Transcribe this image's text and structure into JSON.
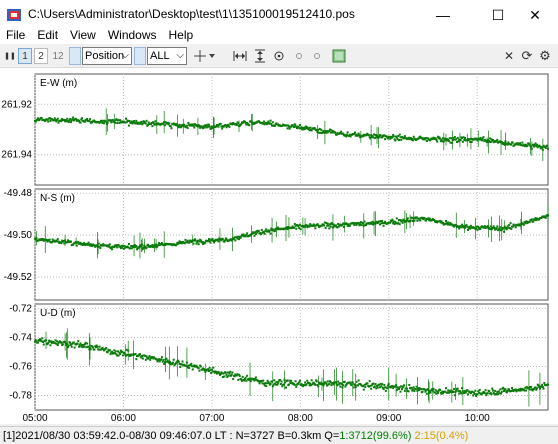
{
  "window": {
    "title": "C:\\Users\\Administrator\\Desktop\\test\\1\\135100019512410.pos",
    "min_glyph": "—",
    "max_glyph": "☐",
    "close_glyph": "✕"
  },
  "menu": [
    "File",
    "Edit",
    "View",
    "Windows",
    "Help"
  ],
  "toolbar": {
    "pause_glyph": "❚❚",
    "btn1": "1",
    "btn2": "2",
    "btn12": "12",
    "plot_type": "Position",
    "solution": "ALL",
    "close_glyph": "✕",
    "refresh_glyph": "⟳",
    "settings_glyph": "⚙"
  },
  "chart_data": [
    {
      "type": "scatter",
      "ylabel": "E-W (m)",
      "yticks": [
        "261.92",
        "261.94"
      ],
      "ytick_values": [
        261.92,
        261.94
      ],
      "ylim": [
        261.952,
        261.908
      ],
      "trend": [
        [
          0,
          261.926
        ],
        [
          1,
          261.927
        ],
        [
          1.5,
          261.928
        ],
        [
          2,
          261.929
        ],
        [
          2.5,
          261.927
        ],
        [
          3,
          261.929
        ],
        [
          3.5,
          261.932
        ],
        [
          4,
          261.933
        ],
        [
          4.5,
          261.934
        ],
        [
          5,
          261.934
        ],
        [
          5.5,
          261.936
        ],
        [
          5.8,
          261.937
        ]
      ],
      "noise": 0.0015,
      "color": "#0b7a0b"
    },
    {
      "type": "scatter",
      "ylabel": "N-S (m)",
      "yticks": [
        "-49.48",
        "-49.50",
        "-49.52"
      ],
      "ytick_values": [
        -49.48,
        -49.5,
        -49.52
      ],
      "ylim": [
        -49.531,
        -49.478
      ],
      "trend": [
        [
          0,
          -49.502
        ],
        [
          0.5,
          -49.504
        ],
        [
          1,
          -49.506
        ],
        [
          1.4,
          -49.505
        ],
        [
          1.8,
          -49.503
        ],
        [
          2.2,
          -49.502
        ],
        [
          2.6,
          -49.498
        ],
        [
          3,
          -49.496
        ],
        [
          3.5,
          -49.495
        ],
        [
          4,
          -49.494
        ],
        [
          4.4,
          -49.492
        ],
        [
          4.8,
          -49.496
        ],
        [
          5.3,
          -49.497
        ],
        [
          5.8,
          -49.491
        ]
      ],
      "noise": 0.0018,
      "color": "#0b7a0b"
    },
    {
      "type": "scatter",
      "ylabel": "U-D (m)",
      "yticks": [
        "-0.72",
        "-0.74",
        "-0.76",
        "-0.78"
      ],
      "ytick_values": [
        -0.72,
        -0.74,
        -0.76,
        -0.78
      ],
      "ylim": [
        -0.79,
        -0.717
      ],
      "trend": [
        [
          0,
          -0.742
        ],
        [
          0.5,
          -0.745
        ],
        [
          0.9,
          -0.75
        ],
        [
          1.3,
          -0.754
        ],
        [
          1.8,
          -0.76
        ],
        [
          2.2,
          -0.766
        ],
        [
          2.6,
          -0.771
        ],
        [
          3,
          -0.772
        ],
        [
          3.5,
          -0.772
        ],
        [
          4,
          -0.774
        ],
        [
          4.5,
          -0.777
        ],
        [
          5,
          -0.778
        ],
        [
          5.5,
          -0.776
        ],
        [
          5.8,
          -0.773
        ]
      ],
      "noise": 0.0035,
      "color": "#0b7a0b"
    }
  ],
  "xticks": [
    "05:00",
    "06:00",
    "07:00",
    "08:00",
    "09:00",
    "10:00"
  ],
  "xtick_values": [
    0,
    1,
    2,
    3,
    4,
    5
  ],
  "xlim": [
    0,
    5.8
  ],
  "status": {
    "prefix": "[1]2021/08/30 03:59:42.0-08/30 09:46:07.0 LT : N=3727 B=0.3km Q=",
    "q1": "1:3712(99.6%)",
    "q2": "2:15(0.4%)",
    "q1_color": "#008000",
    "q2_color": "#d4a000"
  }
}
